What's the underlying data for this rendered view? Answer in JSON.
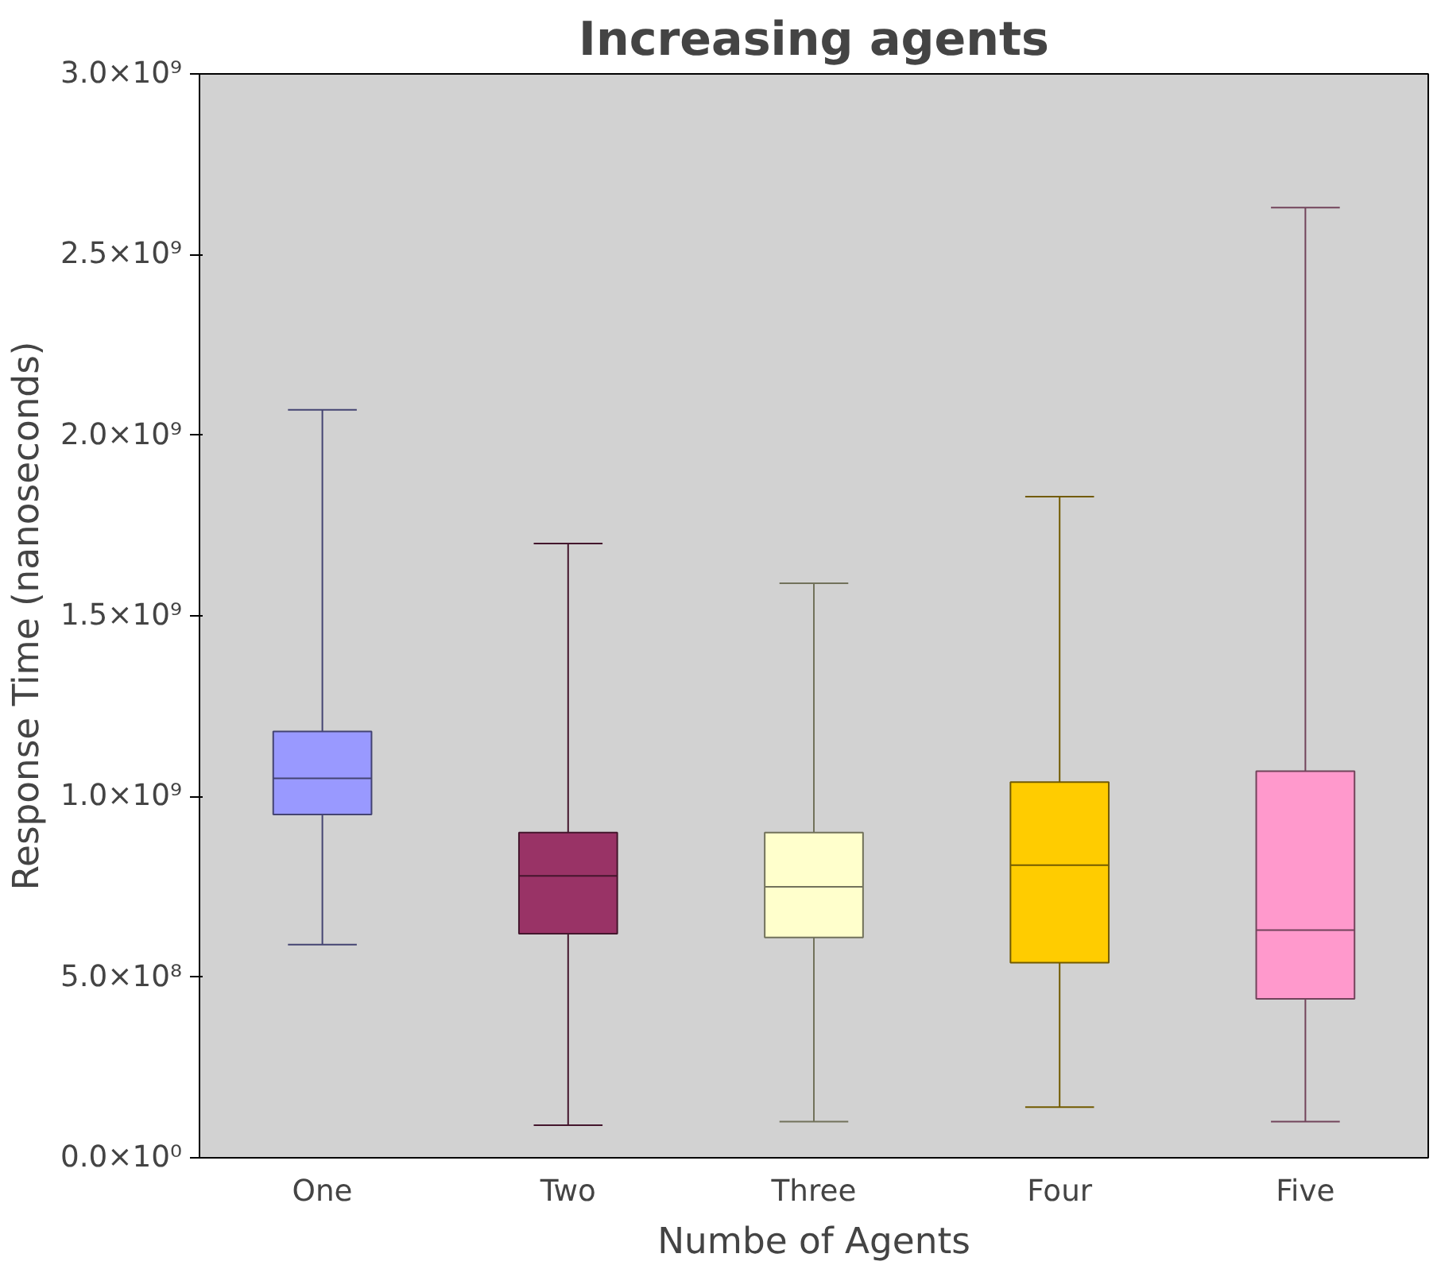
{
  "chart_data": {
    "type": "box",
    "title": "Increasing agents",
    "xlabel": "Numbe of Agents",
    "ylabel": "Response Time (nanoseconds)",
    "categories": [
      "One",
      "Two",
      "Three",
      "Four",
      "Five"
    ],
    "colors": [
      "#9999ff",
      "#993366",
      "#ffffcc",
      "#ffcc00",
      "#ff99cc"
    ],
    "boxes": [
      {
        "low": 590000000.0,
        "q1": 950000000.0,
        "median": 1050000000.0,
        "q3": 1180000000.0,
        "high": 2070000000.0
      },
      {
        "low": 90000000.0,
        "q1": 620000000.0,
        "median": 780000000.0,
        "q3": 900000000.0,
        "high": 1700000000.0
      },
      {
        "low": 100000000.0,
        "q1": 610000000.0,
        "median": 750000000.0,
        "q3": 900000000.0,
        "high": 1590000000.0
      },
      {
        "low": 140000000.0,
        "q1": 540000000.0,
        "median": 810000000.0,
        "q3": 1040000000.0,
        "high": 1830000000.0
      },
      {
        "low": 100000000.0,
        "q1": 440000000.0,
        "median": 630000000.0,
        "q3": 1070000000.0,
        "high": 2630000000.0
      }
    ],
    "ylim": [
      0,
      3000000000.0
    ],
    "yticks": [
      {
        "value": 0,
        "label": "0.0×10⁰"
      },
      {
        "value": 500000000.0,
        "label": "5.0×10⁸"
      },
      {
        "value": 1000000000.0,
        "label": "1.0×10⁹"
      },
      {
        "value": 1500000000.0,
        "label": "1.5×10⁹"
      },
      {
        "value": 2000000000.0,
        "label": "2.0×10⁹"
      },
      {
        "value": 2500000000.0,
        "label": "2.5×10⁹"
      },
      {
        "value": 3000000000.0,
        "label": "3.0×10⁹"
      }
    ],
    "grid": false
  }
}
